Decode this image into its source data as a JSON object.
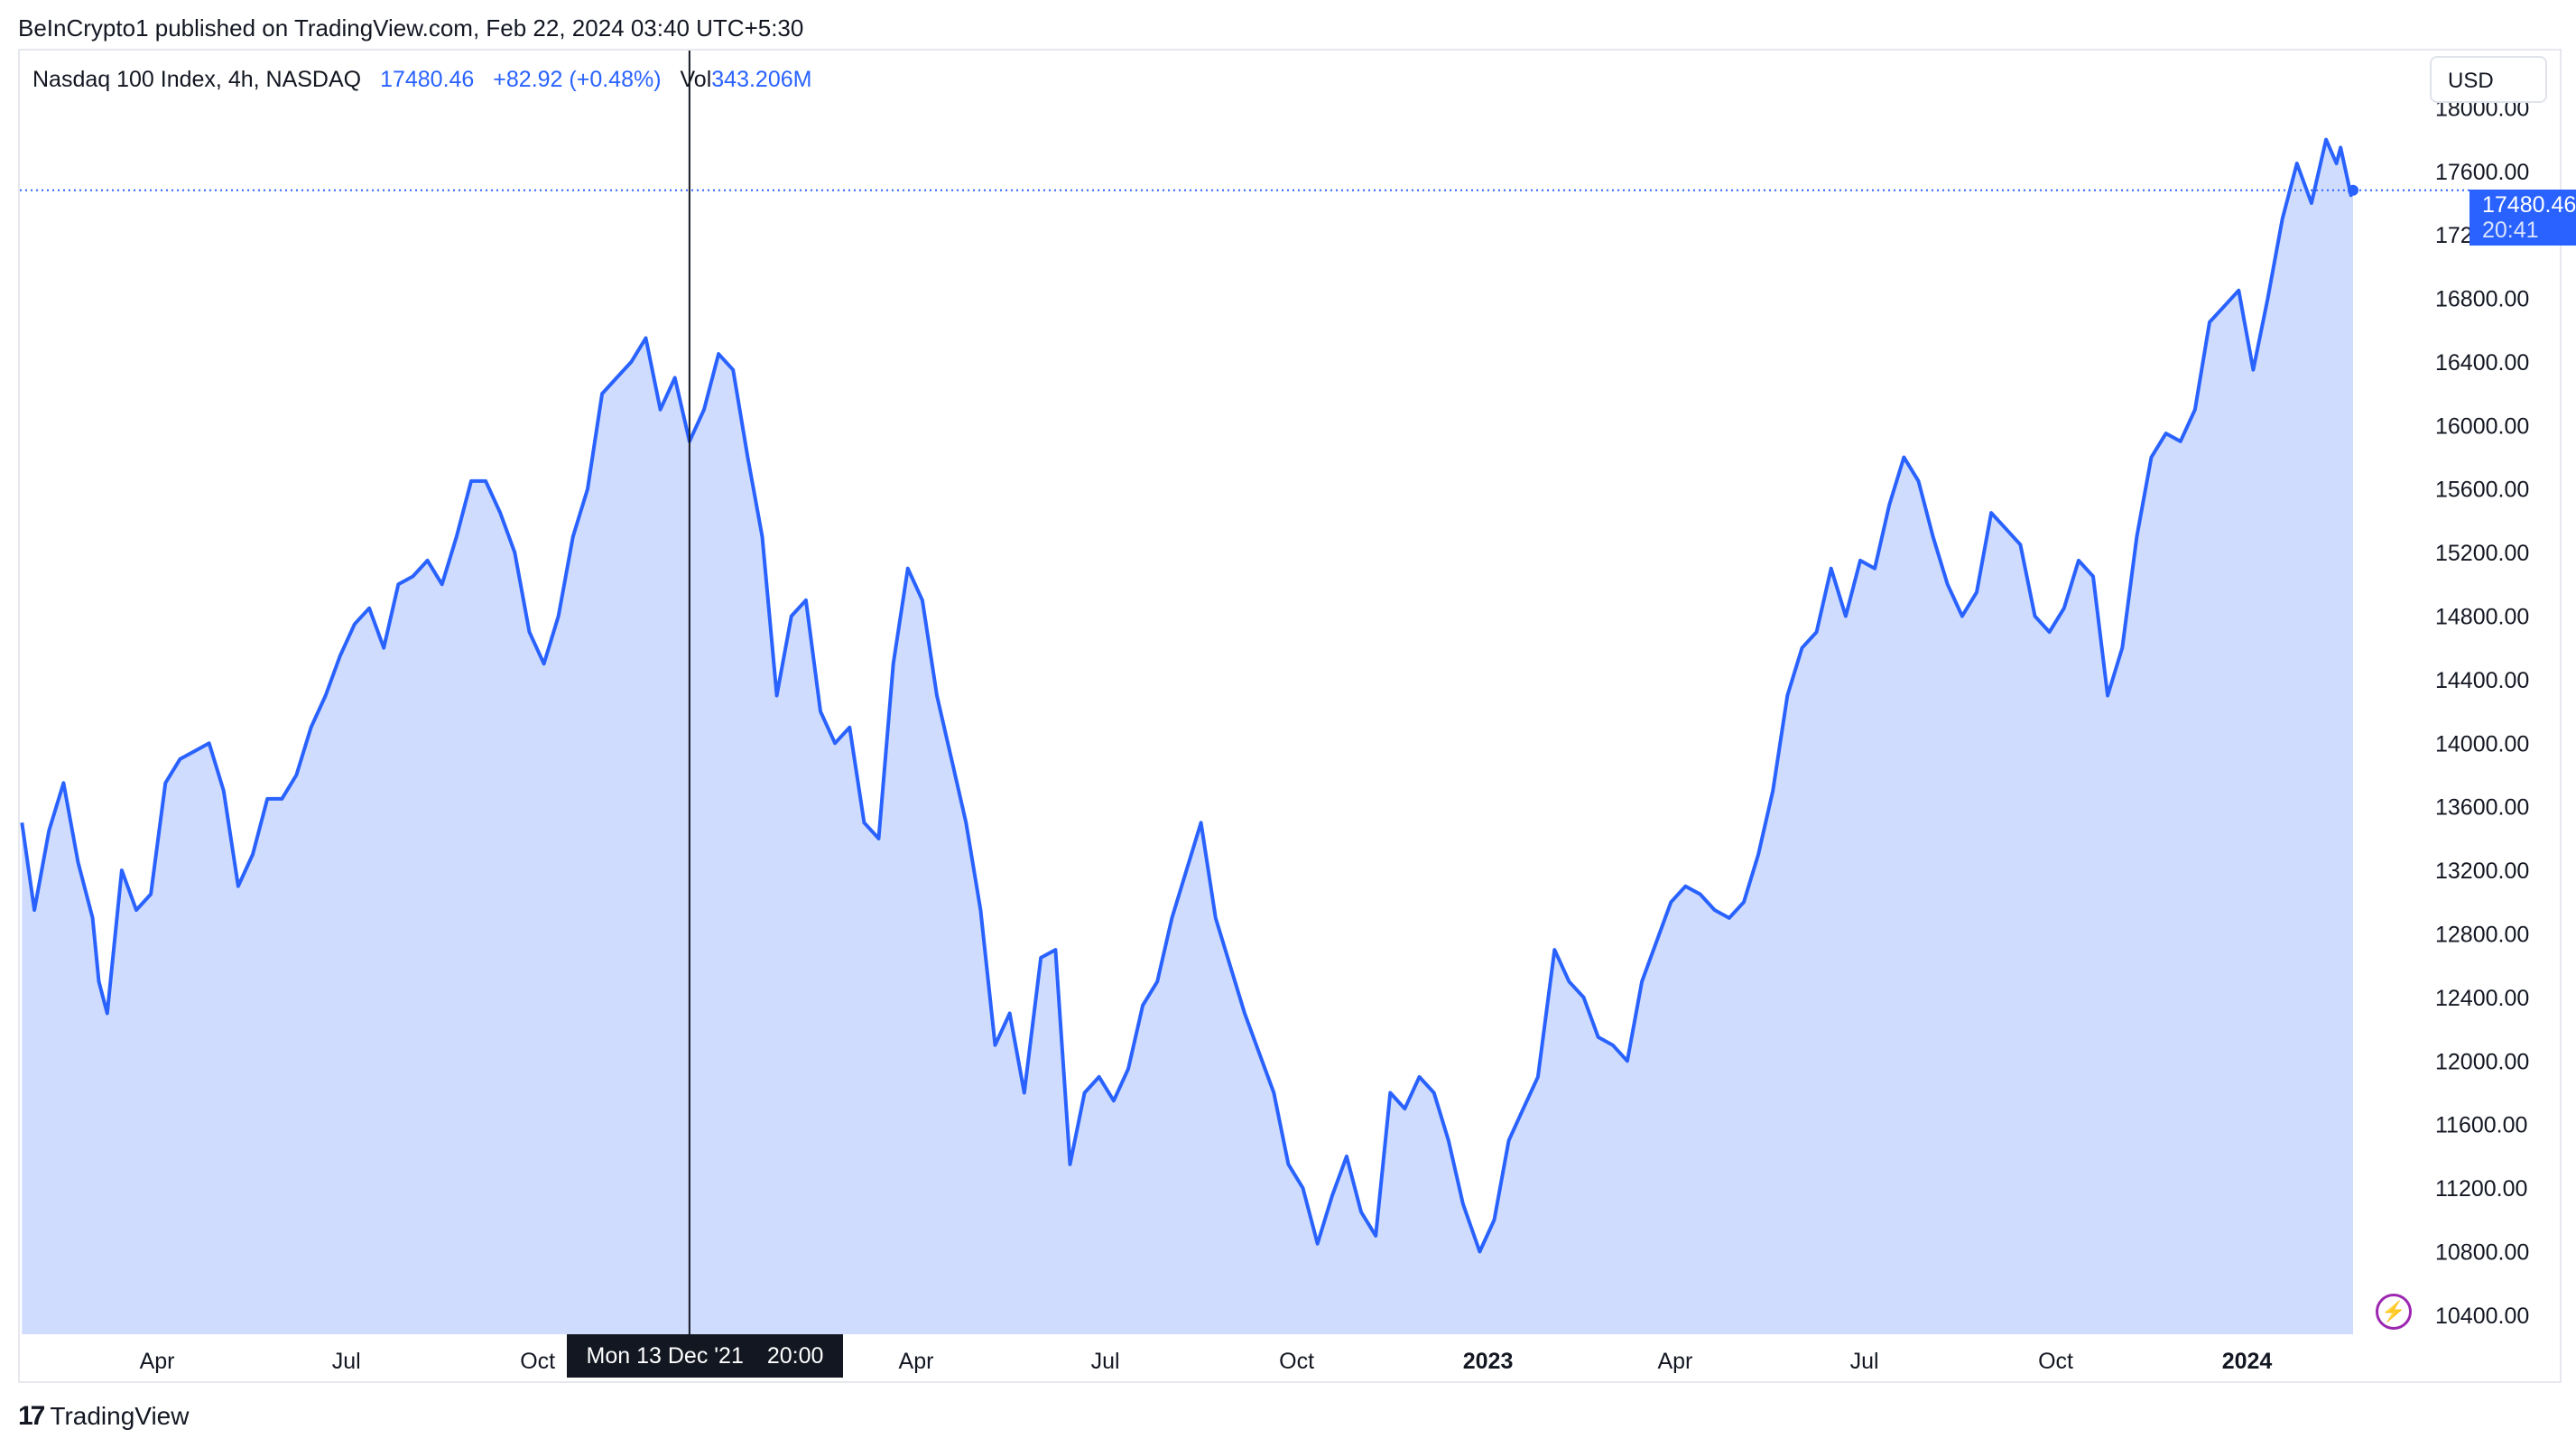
{
  "header": {
    "publisher": "BeInCrypto1 published on TradingView.com, Feb 22, 2024 03:40 UTC+5:30"
  },
  "legend": {
    "symbol": "Nasdaq 100 Index, 4h, NASDAQ",
    "price": "17480.46",
    "change": "+82.92 (+0.48%)",
    "vol_label": "Vol",
    "vol_value": "343.206M"
  },
  "price_scale": {
    "currency": "USD",
    "ticks": [
      "18000.00",
      "17600.00",
      "17200.00",
      "16800.00",
      "16400.00",
      "16000.00",
      "15600.00",
      "15200.00",
      "14800.00",
      "14400.00",
      "14000.00",
      "13600.00",
      "13200.00",
      "12800.00",
      "12400.00",
      "12000.00",
      "11600.00",
      "11200.00",
      "10800.00",
      "10400.00"
    ],
    "last_price": "17480.46",
    "countdown": "20:41"
  },
  "crosshair": {
    "date": "Mon 13 Dec '21",
    "time": "20:00"
  },
  "footer": {
    "logo": "17",
    "brand": "TradingView"
  },
  "colors": {
    "line": "#2962ff",
    "area": "#cfdcfd",
    "text": "#131722"
  },
  "chart_data": {
    "type": "area",
    "title": "Nasdaq 100 Index, 4h, NASDAQ",
    "x_ticks": [
      {
        "label": "Apr",
        "date": "2021-04-01",
        "bold": false
      },
      {
        "label": "Jul",
        "date": "2021-07-01",
        "bold": false
      },
      {
        "label": "Oct",
        "date": "2021-10-01",
        "bold": false
      },
      {
        "label": "Apr",
        "date": "2022-04-01",
        "bold": false
      },
      {
        "label": "Jul",
        "date": "2022-07-01",
        "bold": false
      },
      {
        "label": "Oct",
        "date": "2022-10-01",
        "bold": false
      },
      {
        "label": "2023",
        "date": "2023-01-01",
        "bold": true
      },
      {
        "label": "Apr",
        "date": "2023-04-01",
        "bold": false
      },
      {
        "label": "Jul",
        "date": "2023-07-01",
        "bold": false
      },
      {
        "label": "Oct",
        "date": "2023-10-01",
        "bold": false
      },
      {
        "label": "2024",
        "date": "2024-01-01",
        "bold": true
      }
    ],
    "x_range": [
      "2021-01-25",
      "2024-03-15"
    ],
    "ylim": [
      10280,
      18360
    ],
    "y_ticks": [
      18000,
      17600,
      17200,
      16800,
      16400,
      16000,
      15600,
      15200,
      14800,
      14400,
      14000,
      13600,
      13200,
      12800,
      12400,
      12000,
      11600,
      11200,
      10800,
      10400
    ],
    "last_value": 17480.46,
    "crosshair_date": "2021-12-13",
    "series": [
      {
        "values": [
          [
            "2021-01-26",
            13500
          ],
          [
            "2021-02-01",
            12950
          ],
          [
            "2021-02-08",
            13450
          ],
          [
            "2021-02-15",
            13750
          ],
          [
            "2021-02-22",
            13250
          ],
          [
            "2021-03-01",
            12900
          ],
          [
            "2021-03-04",
            12500
          ],
          [
            "2021-03-08",
            12300
          ],
          [
            "2021-03-15",
            13200
          ],
          [
            "2021-03-22",
            12950
          ],
          [
            "2021-03-29",
            13050
          ],
          [
            "2021-04-05",
            13750
          ],
          [
            "2021-04-12",
            13900
          ],
          [
            "2021-04-19",
            13950
          ],
          [
            "2021-04-26",
            14000
          ],
          [
            "2021-05-03",
            13700
          ],
          [
            "2021-05-10",
            13100
          ],
          [
            "2021-05-17",
            13300
          ],
          [
            "2021-05-24",
            13650
          ],
          [
            "2021-05-31",
            13650
          ],
          [
            "2021-06-07",
            13800
          ],
          [
            "2021-06-14",
            14100
          ],
          [
            "2021-06-21",
            14300
          ],
          [
            "2021-06-28",
            14550
          ],
          [
            "2021-07-05",
            14750
          ],
          [
            "2021-07-12",
            14850
          ],
          [
            "2021-07-19",
            14600
          ],
          [
            "2021-07-26",
            15000
          ],
          [
            "2021-08-02",
            15050
          ],
          [
            "2021-08-09",
            15150
          ],
          [
            "2021-08-16",
            15000
          ],
          [
            "2021-08-23",
            15300
          ],
          [
            "2021-08-30",
            15650
          ],
          [
            "2021-09-06",
            15650
          ],
          [
            "2021-09-13",
            15450
          ],
          [
            "2021-09-20",
            15200
          ],
          [
            "2021-09-27",
            14700
          ],
          [
            "2021-10-04",
            14500
          ],
          [
            "2021-10-11",
            14800
          ],
          [
            "2021-10-18",
            15300
          ],
          [
            "2021-10-25",
            15600
          ],
          [
            "2021-11-01",
            16200
          ],
          [
            "2021-11-08",
            16300
          ],
          [
            "2021-11-15",
            16400
          ],
          [
            "2021-11-22",
            16550
          ],
          [
            "2021-11-29",
            16100
          ],
          [
            "2021-12-06",
            16300
          ],
          [
            "2021-12-13",
            15900
          ],
          [
            "2021-12-20",
            16100
          ],
          [
            "2021-12-27",
            16450
          ],
          [
            "2022-01-03",
            16350
          ],
          [
            "2022-01-10",
            15800
          ],
          [
            "2022-01-17",
            15300
          ],
          [
            "2022-01-24",
            14300
          ],
          [
            "2022-01-31",
            14800
          ],
          [
            "2022-02-07",
            14900
          ],
          [
            "2022-02-14",
            14200
          ],
          [
            "2022-02-21",
            14000
          ],
          [
            "2022-02-28",
            14100
          ],
          [
            "2022-03-07",
            13500
          ],
          [
            "2022-03-14",
            13400
          ],
          [
            "2022-03-21",
            14500
          ],
          [
            "2022-03-28",
            15100
          ],
          [
            "2022-04-04",
            14900
          ],
          [
            "2022-04-11",
            14300
          ],
          [
            "2022-04-18",
            13900
          ],
          [
            "2022-04-25",
            13500
          ],
          [
            "2022-05-02",
            12950
          ],
          [
            "2022-05-09",
            12100
          ],
          [
            "2022-05-16",
            12300
          ],
          [
            "2022-05-23",
            11800
          ],
          [
            "2022-05-31",
            12650
          ],
          [
            "2022-06-07",
            12700
          ],
          [
            "2022-06-14",
            11350
          ],
          [
            "2022-06-21",
            11800
          ],
          [
            "2022-06-28",
            11900
          ],
          [
            "2022-07-05",
            11750
          ],
          [
            "2022-07-12",
            11950
          ],
          [
            "2022-07-19",
            12350
          ],
          [
            "2022-07-26",
            12500
          ],
          [
            "2022-08-02",
            12900
          ],
          [
            "2022-08-09",
            13200
          ],
          [
            "2022-08-16",
            13500
          ],
          [
            "2022-08-23",
            12900
          ],
          [
            "2022-08-30",
            12600
          ],
          [
            "2022-09-06",
            12300
          ],
          [
            "2022-09-13",
            12050
          ],
          [
            "2022-09-20",
            11800
          ],
          [
            "2022-09-27",
            11350
          ],
          [
            "2022-10-04",
            11200
          ],
          [
            "2022-10-11",
            10850
          ],
          [
            "2022-10-18",
            11150
          ],
          [
            "2022-10-25",
            11400
          ],
          [
            "2022-11-01",
            11050
          ],
          [
            "2022-11-08",
            10900
          ],
          [
            "2022-11-15",
            11800
          ],
          [
            "2022-11-22",
            11700
          ],
          [
            "2022-11-29",
            11900
          ],
          [
            "2022-12-06",
            11800
          ],
          [
            "2022-12-13",
            11500
          ],
          [
            "2022-12-20",
            11100
          ],
          [
            "2022-12-28",
            10800
          ],
          [
            "2023-01-04",
            11000
          ],
          [
            "2023-01-11",
            11500
          ],
          [
            "2023-01-18",
            11700
          ],
          [
            "2023-01-25",
            11900
          ],
          [
            "2023-02-02",
            12700
          ],
          [
            "2023-02-09",
            12500
          ],
          [
            "2023-02-16",
            12400
          ],
          [
            "2023-02-23",
            12150
          ],
          [
            "2023-03-02",
            12100
          ],
          [
            "2023-03-09",
            12000
          ],
          [
            "2023-03-16",
            12500
          ],
          [
            "2023-03-23",
            12750
          ],
          [
            "2023-03-30",
            13000
          ],
          [
            "2023-04-06",
            13100
          ],
          [
            "2023-04-13",
            13050
          ],
          [
            "2023-04-20",
            12950
          ],
          [
            "2023-04-27",
            12900
          ],
          [
            "2023-05-04",
            13000
          ],
          [
            "2023-05-11",
            13300
          ],
          [
            "2023-05-18",
            13700
          ],
          [
            "2023-05-25",
            14300
          ],
          [
            "2023-06-01",
            14600
          ],
          [
            "2023-06-08",
            14700
          ],
          [
            "2023-06-15",
            15100
          ],
          [
            "2023-06-22",
            14800
          ],
          [
            "2023-06-29",
            15150
          ],
          [
            "2023-07-06",
            15100
          ],
          [
            "2023-07-13",
            15500
          ],
          [
            "2023-07-20",
            15800
          ],
          [
            "2023-07-27",
            15650
          ],
          [
            "2023-08-03",
            15300
          ],
          [
            "2023-08-10",
            15000
          ],
          [
            "2023-08-17",
            14800
          ],
          [
            "2023-08-24",
            14950
          ],
          [
            "2023-08-31",
            15450
          ],
          [
            "2023-09-07",
            15350
          ],
          [
            "2023-09-14",
            15250
          ],
          [
            "2023-09-21",
            14800
          ],
          [
            "2023-09-28",
            14700
          ],
          [
            "2023-10-05",
            14850
          ],
          [
            "2023-10-12",
            15150
          ],
          [
            "2023-10-19",
            15050
          ],
          [
            "2023-10-26",
            14300
          ],
          [
            "2023-11-02",
            14600
          ],
          [
            "2023-11-09",
            15300
          ],
          [
            "2023-11-16",
            15800
          ],
          [
            "2023-11-23",
            15950
          ],
          [
            "2023-11-30",
            15900
          ],
          [
            "2023-12-07",
            16100
          ],
          [
            "2023-12-14",
            16650
          ],
          [
            "2023-12-21",
            16750
          ],
          [
            "2023-12-28",
            16850
          ],
          [
            "2024-01-04",
            16350
          ],
          [
            "2024-01-11",
            16800
          ],
          [
            "2024-01-18",
            17300
          ],
          [
            "2024-01-25",
            17650
          ],
          [
            "2024-02-01",
            17400
          ],
          [
            "2024-02-08",
            17800
          ],
          [
            "2024-02-13",
            17650
          ],
          [
            "2024-02-15",
            17750
          ],
          [
            "2024-02-20",
            17450
          ],
          [
            "2024-02-21",
            17480.46
          ]
        ]
      }
    ]
  }
}
